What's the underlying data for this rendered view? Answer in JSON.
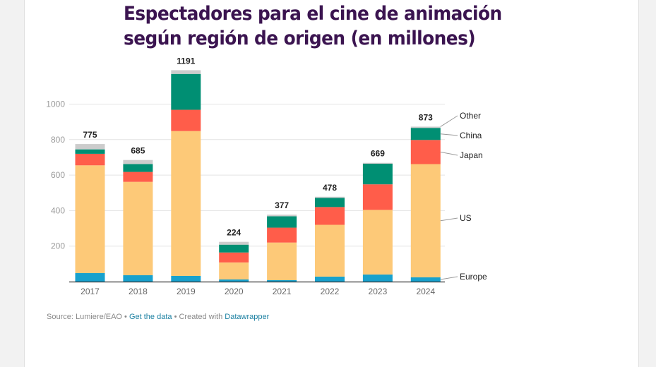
{
  "title_line1": "Espectadores para el cine de animación",
  "title_line2": "según región de origen (en millones)",
  "footer": {
    "source": "Source: Lumiere/EAO",
    "sep1": " • ",
    "get_data": "Get the data",
    "sep2": " • Created with ",
    "datawrapper": "Datawrapper"
  },
  "chart_data": {
    "type": "bar",
    "stacked": true,
    "title": "Espectadores para el cine de animación según región de origen (en millones)",
    "xlabel": "",
    "ylabel": "",
    "ylim": [
      0,
      1200
    ],
    "yticks": [
      200,
      400,
      600,
      800,
      1000
    ],
    "grid": true,
    "legend": "right (direct labels)",
    "categories": [
      "2017",
      "2018",
      "2019",
      "2020",
      "2021",
      "2022",
      "2023",
      "2024"
    ],
    "totals": [
      775,
      685,
      1191,
      224,
      377,
      478,
      669,
      873
    ],
    "series": [
      {
        "name": "Europe",
        "color": "#18a1cd",
        "values": [
          48,
          36,
          32,
          12,
          8,
          28,
          40,
          24
        ]
      },
      {
        "name": "US",
        "color": "#fdc978",
        "values": [
          607,
          526,
          816,
          96,
          212,
          292,
          364,
          638
        ]
      },
      {
        "name": "Japan",
        "color": "#ff5d4a",
        "values": [
          65,
          56,
          120,
          56,
          84,
          100,
          144,
          136
        ]
      },
      {
        "name": "China",
        "color": "#008f73",
        "values": [
          25,
          44,
          202,
          44,
          64,
          52,
          116,
          68
        ]
      },
      {
        "name": "Other",
        "color": "#cccccc",
        "values": [
          30,
          23,
          21,
          16,
          9,
          6,
          5,
          7
        ]
      }
    ]
  }
}
